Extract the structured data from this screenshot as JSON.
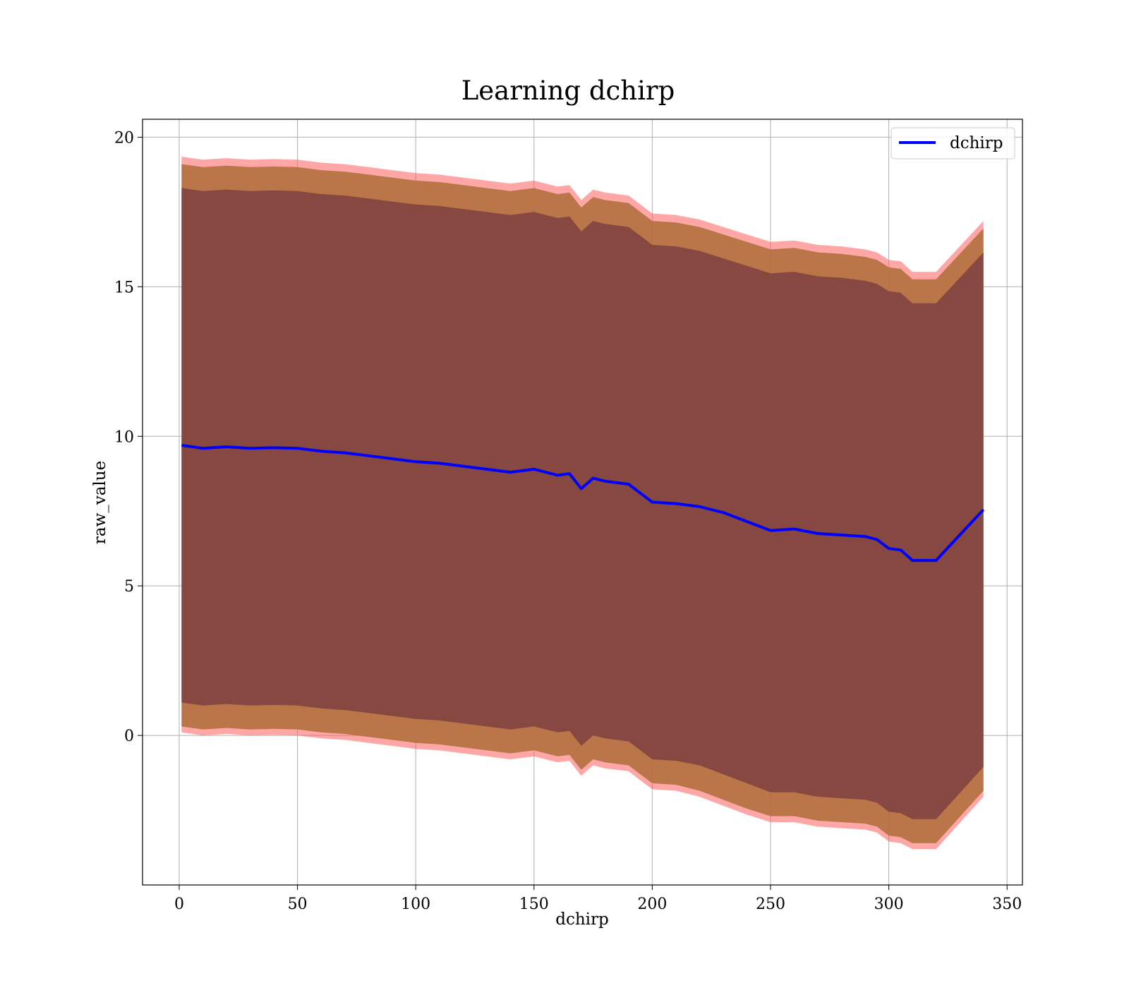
{
  "chart_data": {
    "type": "line",
    "title": "Learning dchirp",
    "xlabel": "dchirp",
    "ylabel": "raw_value",
    "xlim": [
      -15.5,
      356.5
    ],
    "ylim": [
      -5.0,
      20.6
    ],
    "xticks": [
      0,
      50,
      100,
      150,
      200,
      250,
      300,
      350
    ],
    "yticks": [
      0,
      5,
      10,
      15,
      20
    ],
    "grid": true,
    "legend": {
      "position": "top-right",
      "entries": [
        "dchirp"
      ]
    },
    "colors": {
      "line": "#0000ff",
      "band_1std": "#6b2f3e",
      "band_2std": "#b3703f",
      "band_3std": "#ff5f5f"
    },
    "series": [
      {
        "name": "dchirp",
        "x": [
          1,
          10,
          20,
          30,
          40,
          50,
          60,
          70,
          80,
          90,
          100,
          110,
          120,
          130,
          140,
          150,
          160,
          165,
          170,
          175,
          180,
          190,
          195,
          200,
          210,
          220,
          230,
          240,
          250,
          260,
          270,
          280,
          290,
          295,
          300,
          305,
          310,
          320,
          340
        ],
        "mean": [
          9.7,
          9.6,
          9.65,
          9.6,
          9.62,
          9.6,
          9.5,
          9.45,
          9.35,
          9.25,
          9.15,
          9.1,
          9.0,
          8.9,
          8.8,
          8.9,
          8.7,
          8.75,
          8.25,
          8.6,
          8.5,
          8.4,
          8.1,
          7.8,
          7.75,
          7.65,
          7.45,
          7.15,
          6.85,
          6.9,
          6.75,
          6.7,
          6.65,
          6.55,
          6.25,
          6.2,
          5.85,
          5.85,
          7.55
        ],
        "lower_1std": [
          1.1,
          1.0,
          1.05,
          1.0,
          1.02,
          1.0,
          0.9,
          0.85,
          0.75,
          0.65,
          0.55,
          0.5,
          0.4,
          0.3,
          0.2,
          0.3,
          0.1,
          0.15,
          -0.35,
          0.0,
          -0.1,
          -0.2,
          -0.5,
          -0.8,
          -0.85,
          -1.0,
          -1.3,
          -1.6,
          -1.9,
          -1.9,
          -2.05,
          -2.1,
          -2.15,
          -2.25,
          -2.55,
          -2.6,
          -2.8,
          -2.8,
          -1.05
        ],
        "upper_1std": [
          18.3,
          18.2,
          18.25,
          18.2,
          18.22,
          18.2,
          18.1,
          18.05,
          17.95,
          17.85,
          17.75,
          17.7,
          17.6,
          17.5,
          17.4,
          17.5,
          17.3,
          17.35,
          16.85,
          17.2,
          17.1,
          17.0,
          16.7,
          16.4,
          16.35,
          16.2,
          15.95,
          15.7,
          15.45,
          15.5,
          15.35,
          15.3,
          15.2,
          15.1,
          14.85,
          14.8,
          14.45,
          14.45,
          16.15
        ],
        "lower_2std": [
          0.3,
          0.2,
          0.25,
          0.2,
          0.22,
          0.2,
          0.1,
          0.05,
          -0.05,
          -0.15,
          -0.25,
          -0.3,
          -0.4,
          -0.5,
          -0.6,
          -0.5,
          -0.7,
          -0.65,
          -1.15,
          -0.8,
          -0.9,
          -1.0,
          -1.3,
          -1.6,
          -1.65,
          -1.85,
          -2.15,
          -2.45,
          -2.7,
          -2.7,
          -2.85,
          -2.9,
          -2.95,
          -3.05,
          -3.35,
          -3.4,
          -3.6,
          -3.6,
          -1.85
        ],
        "upper_2std": [
          19.1,
          19.0,
          19.05,
          19.0,
          19.02,
          19.0,
          18.9,
          18.85,
          18.75,
          18.65,
          18.55,
          18.5,
          18.4,
          18.3,
          18.2,
          18.3,
          18.1,
          18.15,
          17.65,
          18.0,
          17.9,
          17.8,
          17.5,
          17.2,
          17.15,
          17.0,
          16.75,
          16.5,
          16.25,
          16.3,
          16.15,
          16.1,
          16.0,
          15.9,
          15.65,
          15.6,
          15.25,
          15.25,
          16.95
        ],
        "lower_3std": [
          0.1,
          0.0,
          0.05,
          0.0,
          0.02,
          0.0,
          -0.1,
          -0.15,
          -0.25,
          -0.35,
          -0.45,
          -0.5,
          -0.6,
          -0.7,
          -0.8,
          -0.7,
          -0.9,
          -0.85,
          -1.35,
          -1.0,
          -1.1,
          -1.2,
          -1.5,
          -1.8,
          -1.85,
          -2.05,
          -2.35,
          -2.65,
          -2.9,
          -2.9,
          -3.05,
          -3.1,
          -3.15,
          -3.25,
          -3.55,
          -3.6,
          -3.8,
          -3.8,
          -2.05
        ],
        "upper_3std": [
          19.35,
          19.25,
          19.3,
          19.25,
          19.27,
          19.25,
          19.15,
          19.1,
          19.0,
          18.9,
          18.8,
          18.75,
          18.65,
          18.55,
          18.45,
          18.55,
          18.35,
          18.4,
          17.9,
          18.25,
          18.15,
          18.05,
          17.75,
          17.45,
          17.4,
          17.25,
          17.0,
          16.75,
          16.5,
          16.55,
          16.4,
          16.35,
          16.25,
          16.15,
          15.9,
          15.85,
          15.5,
          15.5,
          17.2
        ]
      }
    ]
  }
}
